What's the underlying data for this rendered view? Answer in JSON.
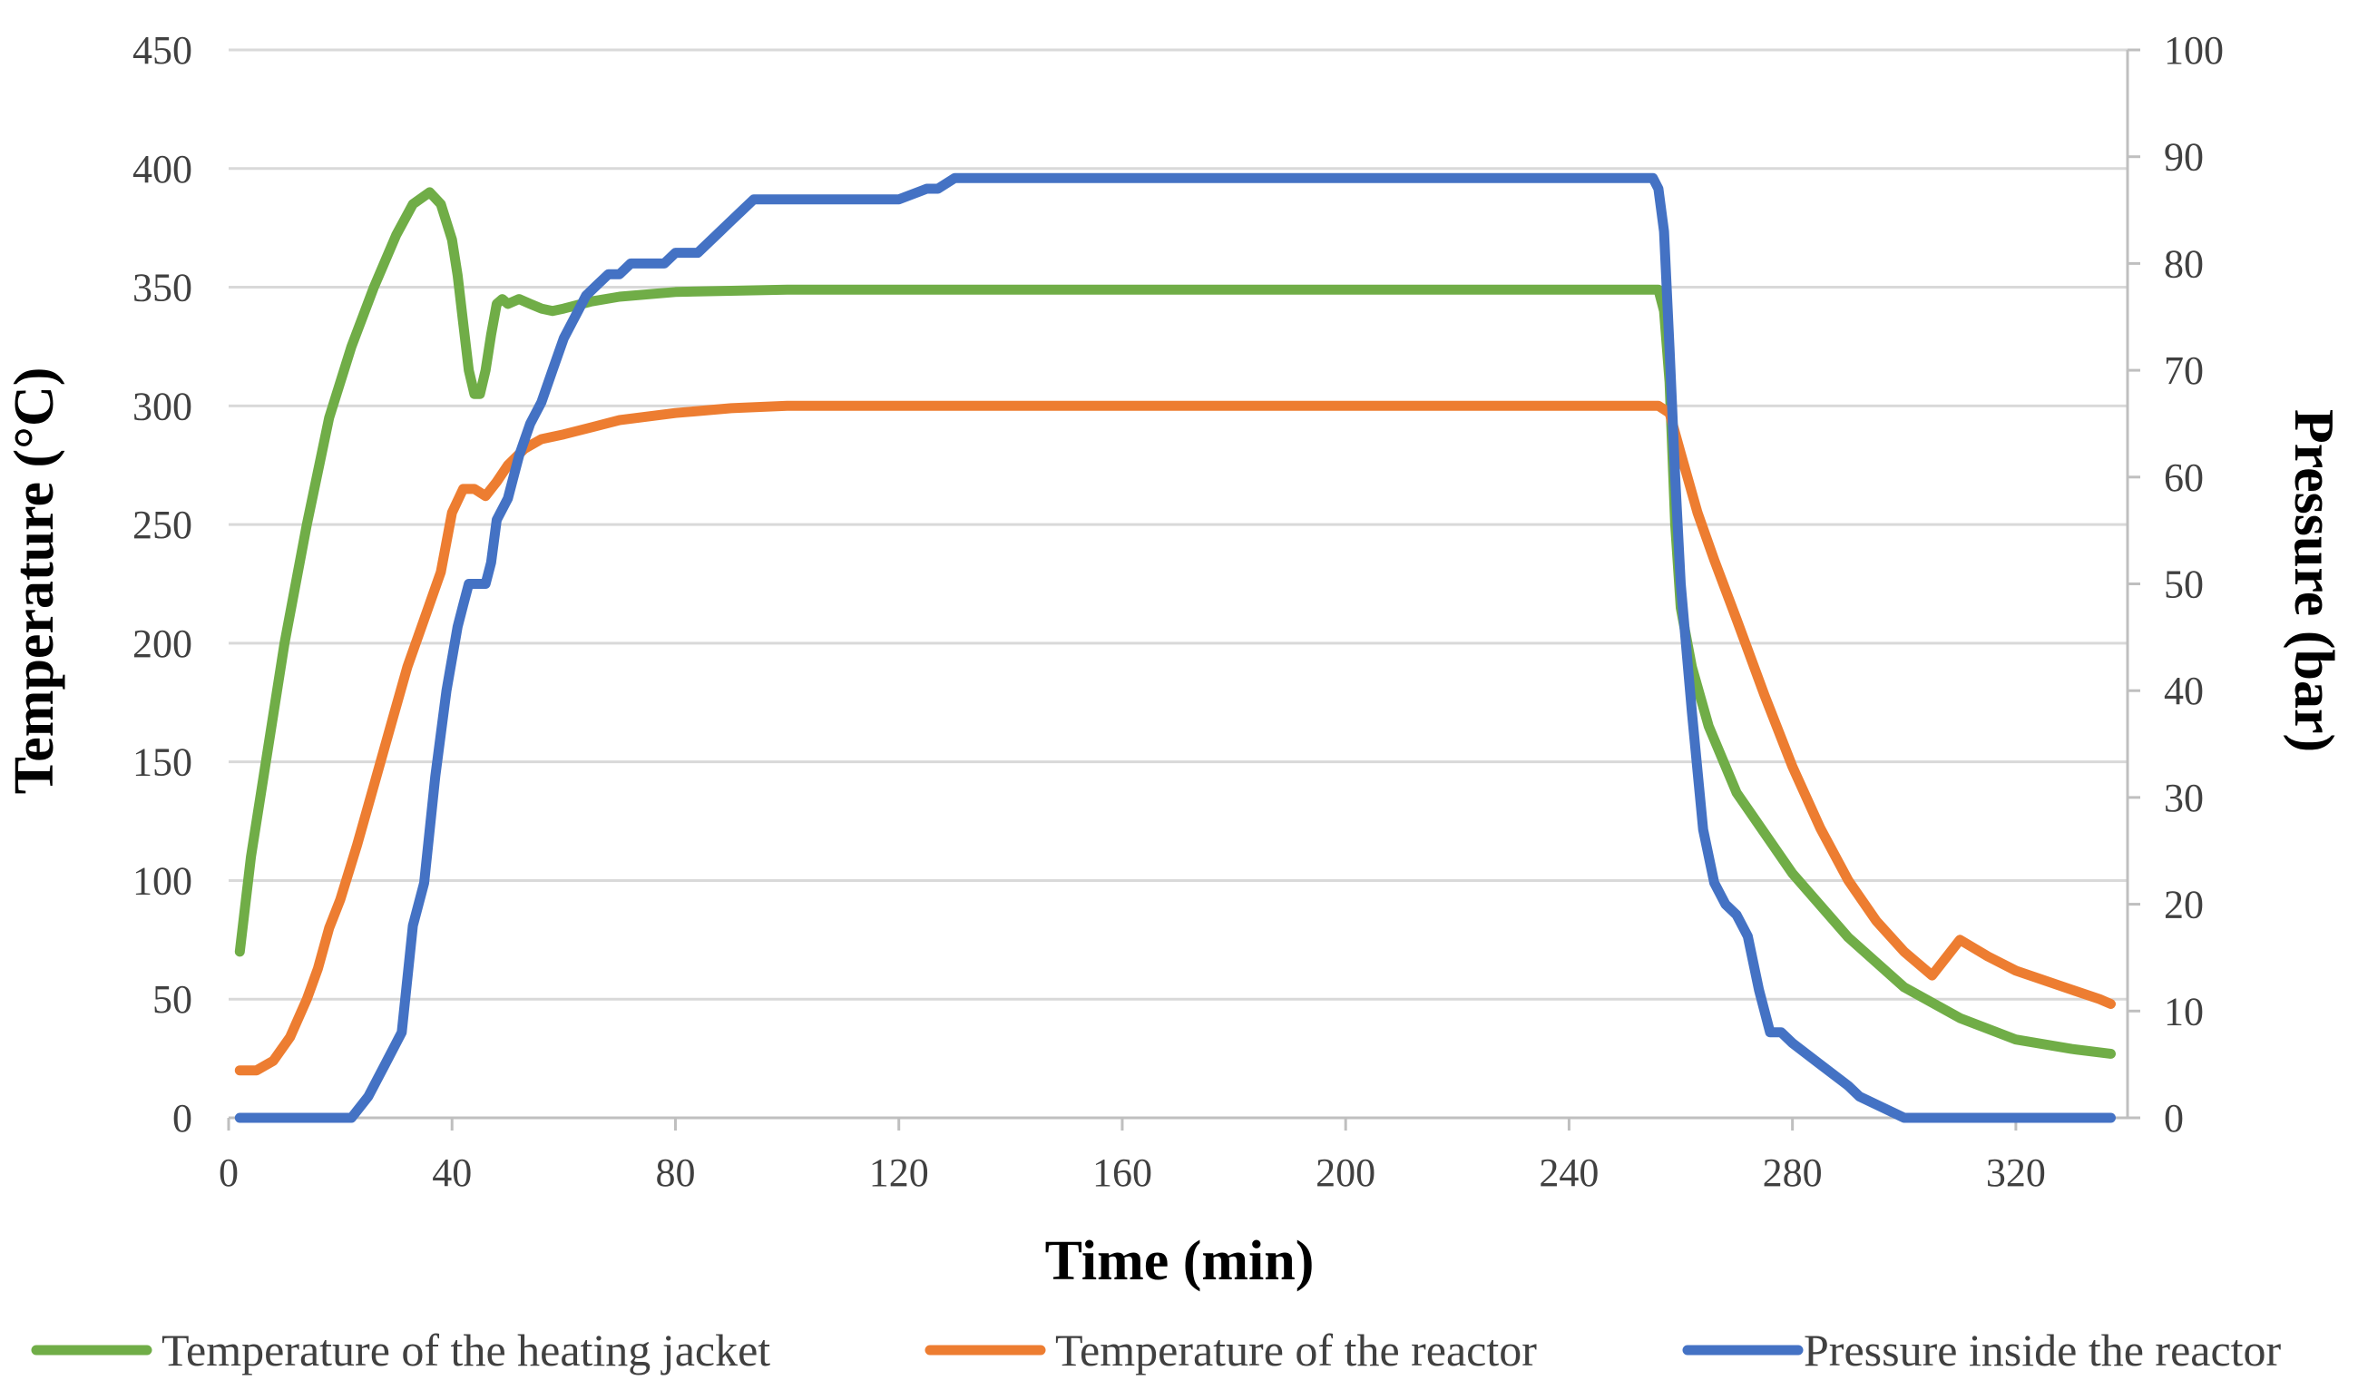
{
  "chart_data": {
    "type": "line",
    "title": "",
    "xlabel": "Time (min)",
    "ylabel": "Temperature (°C)",
    "y2label": "Pressure (bar)",
    "xlim": [
      0,
      340
    ],
    "ylim": [
      0,
      450
    ],
    "y2lim": [
      0,
      100
    ],
    "xticks": [
      0,
      40,
      80,
      120,
      160,
      200,
      240,
      280,
      320
    ],
    "yticks": [
      0,
      50,
      100,
      150,
      200,
      250,
      300,
      350,
      400,
      450
    ],
    "y2ticks": [
      0,
      10,
      20,
      30,
      40,
      50,
      60,
      70,
      80,
      90,
      100
    ],
    "grid": true,
    "legend_position": "bottom",
    "series": [
      {
        "name": "Temperature of the heating jacket",
        "color": "#70ad47",
        "axis": "left",
        "x": [
          2,
          4,
          7,
          10,
          14,
          18,
          22,
          26,
          30,
          33,
          36,
          38,
          40,
          41,
          42,
          43,
          44,
          45,
          46,
          47,
          48,
          49,
          50,
          52,
          54,
          56,
          58,
          60,
          65,
          70,
          80,
          100,
          150,
          200,
          250,
          255,
          256,
          257,
          258,
          259,
          260,
          262,
          265,
          270,
          280,
          290,
          300,
          310,
          320,
          330,
          337
        ],
        "values": [
          70,
          110,
          155,
          200,
          250,
          295,
          325,
          350,
          372,
          385,
          390,
          385,
          370,
          355,
          335,
          315,
          305,
          305,
          315,
          330,
          343,
          345,
          343,
          345,
          343,
          341,
          340,
          341,
          344,
          346,
          348,
          349,
          349,
          349,
          349,
          349,
          349,
          340,
          310,
          250,
          215,
          190,
          165,
          137,
          103,
          76,
          55,
          42,
          33,
          29,
          27
        ]
      },
      {
        "name": "Temperature of the reactor",
        "color": "#ed7d31",
        "axis": "left",
        "x": [
          2,
          5,
          8,
          11,
          14,
          16,
          18,
          20,
          23,
          26,
          29,
          32,
          35,
          38,
          40,
          42,
          43,
          44,
          46,
          47,
          48,
          50,
          53,
          56,
          60,
          65,
          70,
          80,
          90,
          100,
          150,
          200,
          250,
          256,
          258,
          260,
          263,
          266,
          270,
          275,
          280,
          285,
          290,
          295,
          300,
          305,
          310,
          315,
          320,
          325,
          330,
          335,
          337
        ],
        "values": [
          20,
          20,
          24,
          34,
          50,
          63,
          80,
          92,
          115,
          140,
          165,
          190,
          210,
          230,
          255,
          265,
          265,
          265,
          262,
          265,
          268,
          275,
          282,
          286,
          288,
          291,
          294,
          297,
          299,
          300,
          300,
          300,
          300,
          300,
          297,
          280,
          255,
          235,
          210,
          178,
          148,
          122,
          100,
          83,
          70,
          60,
          75,
          68,
          62,
          58,
          54,
          50,
          48
        ]
      },
      {
        "name": "Pressure inside the reactor",
        "color": "#4472c4",
        "axis": "right",
        "x": [
          2,
          10,
          20,
          22,
          25,
          28,
          31,
          33,
          35,
          37,
          39,
          41,
          42,
          43,
          44,
          46,
          47,
          48,
          50,
          52,
          54,
          56,
          58,
          60,
          62,
          64,
          66,
          68,
          70,
          72,
          74,
          76,
          78,
          80,
          82,
          84,
          86,
          88,
          90,
          92,
          94,
          96,
          100,
          110,
          120,
          125,
          127,
          130,
          150,
          200,
          250,
          255,
          256,
          257,
          258,
          259,
          260,
          262,
          264,
          266,
          268,
          270,
          272,
          274,
          276,
          278,
          280,
          285,
          290,
          292,
          300,
          320,
          337
        ],
        "values": [
          0,
          0,
          0,
          0,
          2,
          5,
          8,
          18,
          22,
          32,
          40,
          46,
          48,
          50,
          50,
          50,
          52,
          56,
          58,
          62,
          65,
          67,
          70,
          73,
          75,
          77,
          78,
          79,
          79,
          80,
          80,
          80,
          80,
          81,
          81,
          81,
          82,
          83,
          84,
          85,
          86,
          86,
          86,
          86,
          86,
          87,
          87,
          88,
          88,
          88,
          88,
          88,
          87,
          83,
          72,
          60,
          50,
          38,
          27,
          22,
          20,
          19,
          17,
          12,
          8,
          8,
          7,
          5,
          3,
          2,
          0,
          0,
          0
        ]
      }
    ]
  }
}
